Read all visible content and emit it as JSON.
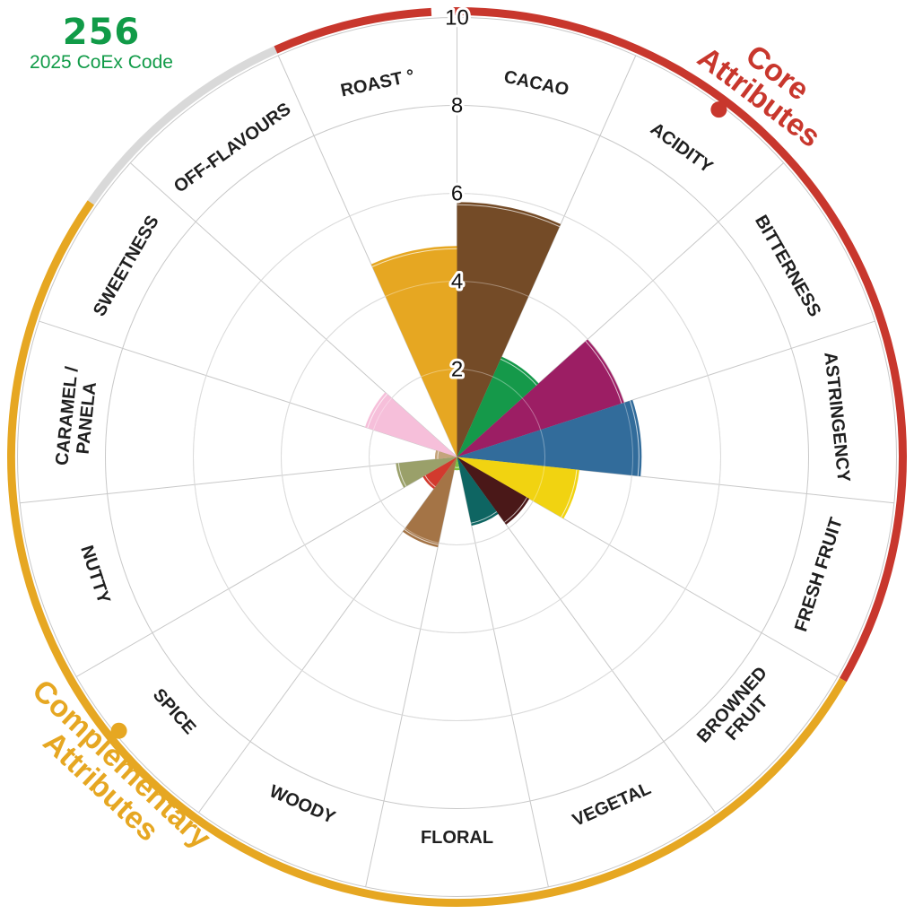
{
  "header": {
    "code": "256",
    "code_label": "2025 CoEx Code"
  },
  "chart_data": {
    "type": "polar-bar",
    "rmax": 10,
    "ticks": [
      "2",
      "4",
      "6",
      "8",
      "10"
    ],
    "tick_values": [
      2,
      4,
      6,
      8,
      10
    ],
    "categories": [
      {
        "label": "CACAO",
        "value": 5.8,
        "color": "#744b27"
      },
      {
        "label": "ACIDITY",
        "value": 2.5,
        "color": "#15994a"
      },
      {
        "label": "BITTERNESS",
        "value": 4.0,
        "color": "#9c1e64"
      },
      {
        "label": "ASTRINGENCY",
        "value": 4.2,
        "color": "#326c9b"
      },
      {
        "label": "FRESH FRUIT",
        "value": 2.8,
        "color": "#f1d311"
      },
      {
        "label": "BROWNED FRUIT",
        "value": 1.9,
        "color": "#4a1818"
      },
      {
        "label": "VEGETAL",
        "value": 1.6,
        "color": "#0e6562"
      },
      {
        "label": "FLORAL",
        "value": 0.3,
        "color": "#7cc242"
      },
      {
        "label": "WOODY",
        "value": 2.1,
        "color": "#a47446"
      },
      {
        "label": "SPICE",
        "value": 0.9,
        "color": "#d23a2e"
      },
      {
        "label": "NUTTY",
        "value": 1.4,
        "color": "#9aa06a"
      },
      {
        "label": "CARAMEL / PANELA",
        "value": 0.5,
        "color": "#c4a47c"
      },
      {
        "label": "SWEETNESS",
        "value": 2.2,
        "color": "#f6bfda"
      },
      {
        "label": "OFF-FLAVOURS",
        "value": 0.0,
        "color": "#999999"
      },
      {
        "label": "ROAST °",
        "value": 4.8,
        "color": "#e6a722"
      }
    ],
    "groups": [
      {
        "label": "Core Attributes",
        "color": "#c8372d"
      },
      {
        "label": "Complementary Attributes",
        "color": "#e6a722"
      },
      {
        "label": "",
        "color": "#d9d9d9"
      }
    ]
  }
}
